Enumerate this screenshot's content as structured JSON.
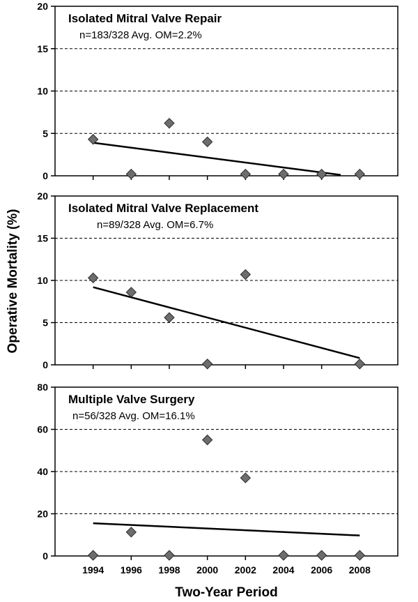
{
  "chart_data": {
    "type": "scatter",
    "xlabel": "Two-Year Period",
    "ylabel": "Operative Mortality (%)",
    "x_ticks": [
      "1994",
      "1996",
      "1998",
      "2000",
      "2002",
      "2004",
      "2006",
      "2008"
    ],
    "xlim": [
      1992,
      2010
    ],
    "panels": [
      {
        "title": "Isolated Mitral Valve Repair",
        "subtitle": "n=183/328  Avg. OM=2.2%",
        "ylim": [
          0,
          20
        ],
        "y_ticks": [
          "0",
          "5",
          "10",
          "15",
          "20"
        ],
        "grid": "dashed horizontal",
        "points": [
          {
            "x": 1994,
            "y": 4.3
          },
          {
            "x": 1996,
            "y": 0.2
          },
          {
            "x": 1998,
            "y": 6.2
          },
          {
            "x": 2000,
            "y": 4.0
          },
          {
            "x": 2002,
            "y": 0.2
          },
          {
            "x": 2004,
            "y": 0.2
          },
          {
            "x": 2006,
            "y": 0.2
          },
          {
            "x": 2008,
            "y": 0.2
          }
        ],
        "trendline": {
          "x0": 1994,
          "y0": 3.9,
          "x1": 2007,
          "y1": 0.1
        }
      },
      {
        "title": "Isolated Mitral Valve Replacement",
        "subtitle": "n=89/328  Avg. OM=6.7%",
        "ylim": [
          0,
          20
        ],
        "y_ticks": [
          "0",
          "5",
          "10",
          "15",
          "20"
        ],
        "grid": "dashed horizontal",
        "points": [
          {
            "x": 1994,
            "y": 10.3
          },
          {
            "x": 1996,
            "y": 8.6
          },
          {
            "x": 1998,
            "y": 5.6
          },
          {
            "x": 2000,
            "y": 0.1
          },
          {
            "x": 2002,
            "y": 10.7
          },
          {
            "x": 2008,
            "y": 0.1
          }
        ],
        "trendline": {
          "x0": 1994,
          "y0": 9.2,
          "x1": 2008,
          "y1": 0.8
        }
      },
      {
        "title": "Multiple Valve Surgery",
        "subtitle": "n=56/328  Avg. OM=16.1%",
        "ylim": [
          0,
          80
        ],
        "y_ticks": [
          "0",
          "20",
          "40",
          "60",
          "80"
        ],
        "grid": "dashed horizontal",
        "points": [
          {
            "x": 1994,
            "y": 0.3
          },
          {
            "x": 1996,
            "y": 11.3
          },
          {
            "x": 1998,
            "y": 0.3
          },
          {
            "x": 2000,
            "y": 55
          },
          {
            "x": 2002,
            "y": 37
          },
          {
            "x": 2004,
            "y": 0.3
          },
          {
            "x": 2006,
            "y": 0.3
          },
          {
            "x": 2008,
            "y": 0.3
          }
        ],
        "trendline": {
          "x0": 1994,
          "y0": 15.5,
          "x1": 2008,
          "y1": 9.7
        }
      }
    ]
  },
  "colors": {
    "marker_fill": "#6d6d6d",
    "marker_stroke": "#2a2a2a",
    "axis": "#000000",
    "grid": "#000000",
    "trendline": "#000000"
  }
}
